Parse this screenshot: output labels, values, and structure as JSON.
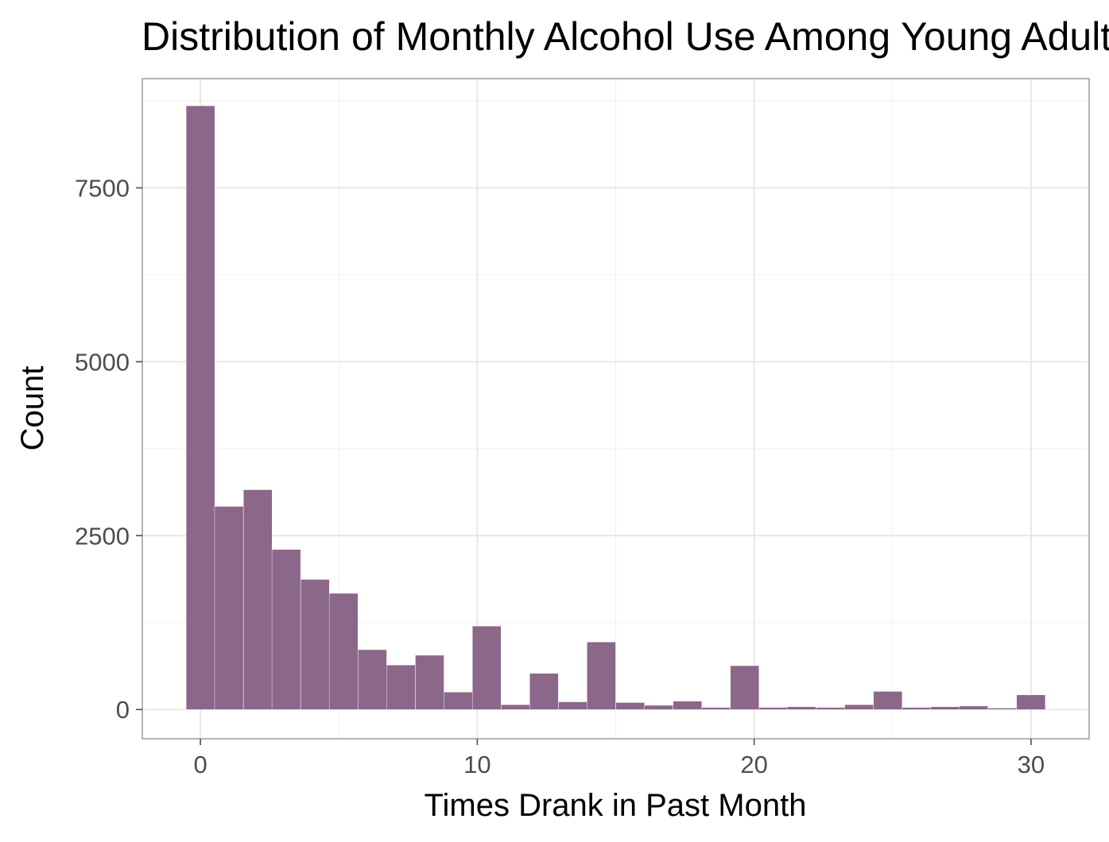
{
  "chart_data": {
    "type": "bar",
    "title": "Distribution of Monthly Alcohol Use Among Young Adults",
    "xlabel": "Times Drank in Past Month",
    "ylabel": "Count",
    "xlim": [
      -2.1,
      32.1
    ],
    "ylim": [
      -420,
      9070
    ],
    "x_ticks": [
      0,
      10,
      20,
      30
    ],
    "x_tick_labels": [
      "0",
      "10",
      "20",
      "30"
    ],
    "y_ticks": [
      0,
      2500,
      5000,
      7500
    ],
    "y_tick_labels": [
      "0",
      "2500",
      "5000",
      "7500"
    ],
    "bin_width": 1.0345,
    "bins_centers": [
      0,
      1.03,
      2.07,
      3.1,
      4.14,
      5.17,
      6.21,
      7.24,
      8.28,
      9.31,
      10.34,
      11.38,
      12.41,
      13.45,
      14.48,
      15.52,
      16.55,
      17.59,
      18.62,
      19.66,
      20.69,
      21.72,
      22.76,
      23.79,
      24.83,
      25.86,
      26.9,
      27.93,
      28.97,
      30
    ],
    "values": [
      8680,
      2920,
      3160,
      2300,
      1870,
      1670,
      860,
      640,
      780,
      250,
      1200,
      70,
      520,
      110,
      970,
      100,
      60,
      120,
      30,
      630,
      30,
      40,
      30,
      70,
      260,
      30,
      40,
      50,
      20,
      210
    ],
    "bar_color": "#8b6789",
    "grid": true,
    "legend": "none"
  }
}
